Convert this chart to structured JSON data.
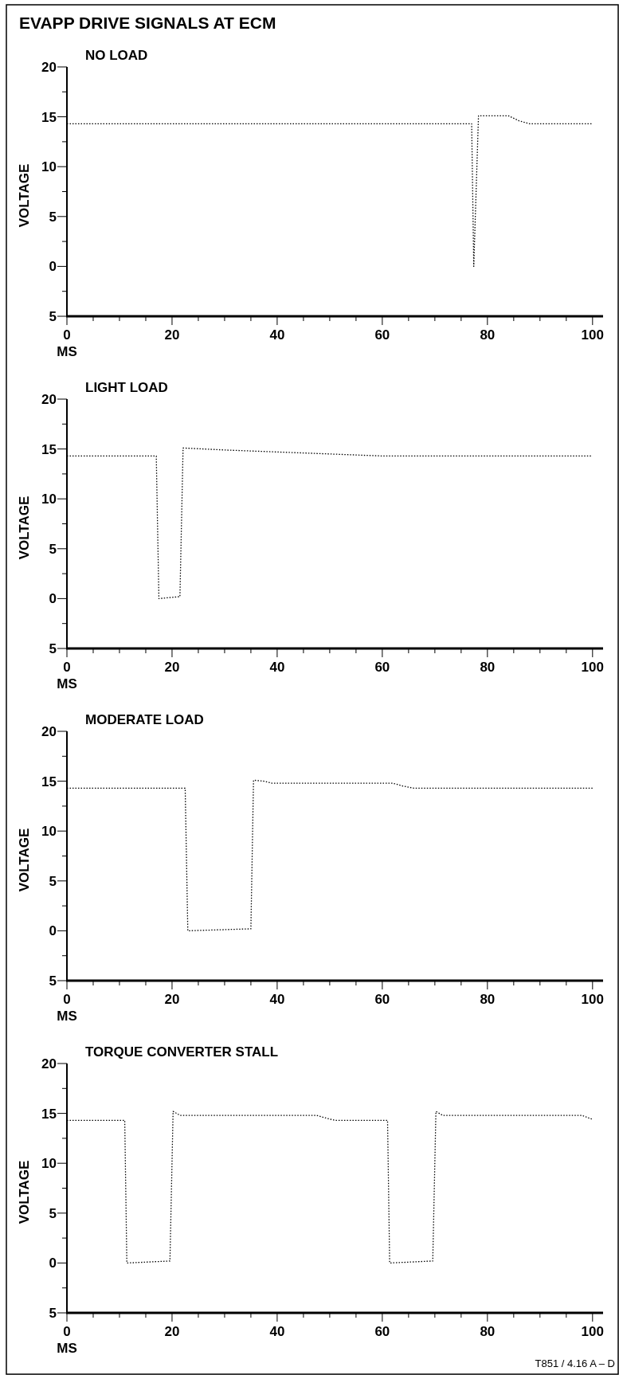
{
  "chart_data": [
    {
      "type": "line",
      "title": "EVAPP DRIVE SIGNALS AT ECM",
      "subtitle": "NO LOAD",
      "xlabel": "MS",
      "ylabel": "VOLTAGE",
      "xlim": [
        0,
        102
      ],
      "ylim": [
        -5,
        20
      ],
      "xticks": [
        0,
        {
          "value": 5,
          "label": null
        },
        {
          "value": 10,
          "label": null
        },
        {
          "value": 15,
          "label": null
        },
        20,
        {
          "value": 25,
          "label": null
        },
        {
          "value": 30,
          "label": null
        },
        {
          "value": 35,
          "label": null
        },
        40,
        {
          "value": 45,
          "label": null
        },
        {
          "value": 50,
          "label": null
        },
        {
          "value": 55,
          "label": null
        },
        60,
        {
          "value": 65,
          "label": null
        },
        {
          "value": 70,
          "label": null
        },
        {
          "value": 75,
          "label": null
        },
        80,
        {
          "value": 85,
          "label": null
        },
        {
          "value": 90,
          "label": null
        },
        {
          "value": 95,
          "label": null
        },
        100
      ],
      "yticks": [
        {
          "value": -5,
          "label": "5"
        },
        {
          "value": -2.5,
          "label": null
        },
        0,
        {
          "value": 2.5,
          "label": null
        },
        5,
        {
          "value": 7.5,
          "label": null
        },
        10,
        {
          "value": 12.5,
          "label": null
        },
        15,
        {
          "value": 17.5,
          "label": null
        },
        20
      ],
      "grid": false,
      "marker": "none",
      "line_style": "dotted",
      "series": [
        {
          "color": "#000000",
          "x": [
            0,
            77,
            77.4,
            78.3,
            84,
            86,
            88,
            100
          ],
          "values": [
            14.3,
            14.3,
            0,
            15.1,
            15.1,
            14.6,
            14.3,
            14.3
          ]
        }
      ]
    },
    {
      "type": "line",
      "subtitle": "LIGHT LOAD",
      "xlabel": "MS",
      "ylabel": "VOLTAGE",
      "xlim": [
        0,
        102
      ],
      "ylim": [
        -5,
        20
      ],
      "xticks": [
        0,
        {
          "value": 5,
          "label": null
        },
        {
          "value": 10,
          "label": null
        },
        {
          "value": 15,
          "label": null
        },
        20,
        {
          "value": 25,
          "label": null
        },
        {
          "value": 30,
          "label": null
        },
        {
          "value": 35,
          "label": null
        },
        40,
        {
          "value": 45,
          "label": null
        },
        {
          "value": 50,
          "label": null
        },
        {
          "value": 55,
          "label": null
        },
        60,
        {
          "value": 65,
          "label": null
        },
        {
          "value": 70,
          "label": null
        },
        {
          "value": 75,
          "label": null
        },
        80,
        {
          "value": 85,
          "label": null
        },
        {
          "value": 90,
          "label": null
        },
        {
          "value": 95,
          "label": null
        },
        100
      ],
      "yticks": [
        {
          "value": -5,
          "label": "5"
        },
        {
          "value": -2.5,
          "label": null
        },
        0,
        {
          "value": 2.5,
          "label": null
        },
        5,
        {
          "value": 7.5,
          "label": null
        },
        10,
        {
          "value": 12.5,
          "label": null
        },
        15,
        {
          "value": 17.5,
          "label": null
        },
        20
      ],
      "grid": false,
      "marker": "none",
      "line_style": "dotted",
      "series": [
        {
          "color": "#000000",
          "x": [
            0,
            17,
            17.5,
            21.5,
            22.1,
            30,
            40,
            50,
            60,
            100
          ],
          "values": [
            14.3,
            14.3,
            0,
            0.2,
            15.1,
            14.9,
            14.7,
            14.5,
            14.3,
            14.3
          ]
        }
      ]
    },
    {
      "type": "line",
      "subtitle": "MODERATE LOAD",
      "xlabel": "MS",
      "ylabel": "VOLTAGE",
      "xlim": [
        0,
        102
      ],
      "ylim": [
        -5,
        20
      ],
      "xticks": [
        0,
        {
          "value": 5,
          "label": null
        },
        {
          "value": 10,
          "label": null
        },
        {
          "value": 15,
          "label": null
        },
        20,
        {
          "value": 25,
          "label": null
        },
        {
          "value": 30,
          "label": null
        },
        {
          "value": 35,
          "label": null
        },
        40,
        {
          "value": 45,
          "label": null
        },
        {
          "value": 50,
          "label": null
        },
        {
          "value": 55,
          "label": null
        },
        60,
        {
          "value": 65,
          "label": null
        },
        {
          "value": 70,
          "label": null
        },
        {
          "value": 75,
          "label": null
        },
        80,
        {
          "value": 85,
          "label": null
        },
        {
          "value": 90,
          "label": null
        },
        {
          "value": 95,
          "label": null
        },
        100
      ],
      "yticks": [
        {
          "value": -5,
          "label": "5"
        },
        {
          "value": -2.5,
          "label": null
        },
        0,
        {
          "value": 2.5,
          "label": null
        },
        5,
        {
          "value": 7.5,
          "label": null
        },
        10,
        {
          "value": 12.5,
          "label": null
        },
        15,
        {
          "value": 17.5,
          "label": null
        },
        20
      ],
      "grid": false,
      "marker": "none",
      "line_style": "dotted",
      "series": [
        {
          "color": "#000000",
          "x": [
            0,
            22.5,
            23,
            35,
            35.5,
            37.5,
            39,
            62,
            64,
            66,
            100
          ],
          "values": [
            14.3,
            14.3,
            0,
            0.2,
            15.1,
            15,
            14.8,
            14.8,
            14.5,
            14.3,
            14.3
          ]
        }
      ]
    },
    {
      "type": "line",
      "subtitle": "TORQUE CONVERTER STALL",
      "xlabel": "MS",
      "ylabel": "VOLTAGE",
      "xlim": [
        0,
        102
      ],
      "ylim": [
        -5,
        20
      ],
      "xticks": [
        0,
        {
          "value": 5,
          "label": null
        },
        {
          "value": 10,
          "label": null
        },
        {
          "value": 15,
          "label": null
        },
        20,
        {
          "value": 25,
          "label": null
        },
        {
          "value": 30,
          "label": null
        },
        {
          "value": 35,
          "label": null
        },
        40,
        {
          "value": 45,
          "label": null
        },
        {
          "value": 50,
          "label": null
        },
        {
          "value": 55,
          "label": null
        },
        60,
        {
          "value": 65,
          "label": null
        },
        {
          "value": 70,
          "label": null
        },
        {
          "value": 75,
          "label": null
        },
        80,
        {
          "value": 85,
          "label": null
        },
        {
          "value": 90,
          "label": null
        },
        {
          "value": 95,
          "label": null
        },
        100
      ],
      "yticks": [
        {
          "value": -5,
          "label": "5"
        },
        {
          "value": -2.5,
          "label": null
        },
        0,
        {
          "value": 2.5,
          "label": null
        },
        5,
        {
          "value": 7.5,
          "label": null
        },
        10,
        {
          "value": 12.5,
          "label": null
        },
        15,
        {
          "value": 17.5,
          "label": null
        },
        20
      ],
      "grid": false,
      "marker": "none",
      "line_style": "dotted",
      "annotations": [
        "T851 / 4.16 A – D"
      ],
      "series": [
        {
          "color": "#000000",
          "x": [
            0,
            11,
            11.4,
            19.6,
            20.2,
            21.5,
            47.5,
            49.5,
            51,
            61,
            61.4,
            69.6,
            70.2,
            71.5,
            98,
            100
          ],
          "values": [
            14.3,
            14.3,
            0,
            0.2,
            15.2,
            14.8,
            14.8,
            14.5,
            14.3,
            14.3,
            0,
            0.2,
            15.2,
            14.8,
            14.8,
            14.4
          ]
        }
      ]
    }
  ]
}
